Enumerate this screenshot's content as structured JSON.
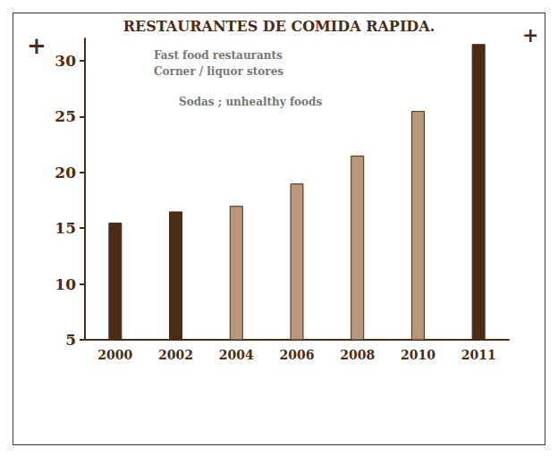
{
  "chart_data": {
    "type": "bar",
    "title": "RESTAURANTES DE COMIDA RAPIDA.",
    "annotations": [
      "Fast food restaurants",
      "Corner / liquor stores",
      "Sodas ; unhealthy foods",
      "+",
      "+"
    ],
    "categories": [
      "2000",
      "2002",
      "2004",
      "2006",
      "2008",
      "2010",
      "2011"
    ],
    "values": [
      15.5,
      16.5,
      17,
      19,
      21.5,
      25.5,
      31.5
    ],
    "colors": [
      "#4a2c17",
      "#4a2c17",
      "#b8977a",
      "#b8977a",
      "#b8977a",
      "#b8977a",
      "#4a2c17"
    ],
    "ylim": [
      5,
      32
    ],
    "yticks": [
      5,
      10,
      15,
      20,
      25,
      30
    ],
    "grid": false
  }
}
